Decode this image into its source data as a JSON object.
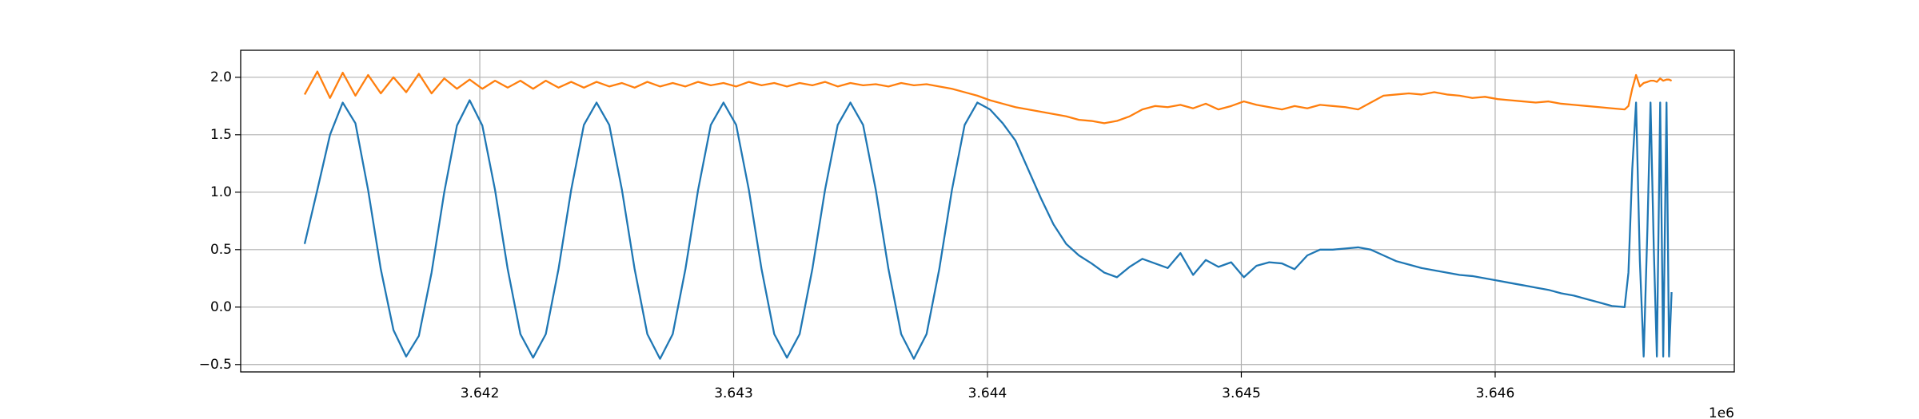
{
  "chart_data": {
    "type": "line",
    "x": [
      3641310,
      3641360,
      3641410,
      3641460,
      3641510,
      3641560,
      3641610,
      3641660,
      3641710,
      3641760,
      3641810,
      3641860,
      3641910,
      3641960,
      3642010,
      3642060,
      3642110,
      3642160,
      3642210,
      3642260,
      3642310,
      3642360,
      3642410,
      3642460,
      3642510,
      3642560,
      3642610,
      3642660,
      3642710,
      3642760,
      3642810,
      3642860,
      3642910,
      3642960,
      3643010,
      3643060,
      3643110,
      3643160,
      3643210,
      3643260,
      3643310,
      3643360,
      3643410,
      3643460,
      3643510,
      3643560,
      3643610,
      3643660,
      3643710,
      3643760,
      3643810,
      3643860,
      3643910,
      3643960,
      3644010,
      3644060,
      3644110,
      3644160,
      3644210,
      3644260,
      3644310,
      3644360,
      3644410,
      3644460,
      3644510,
      3644560,
      3644610,
      3644660,
      3644710,
      3644760,
      3644810,
      3644860,
      3644910,
      3644960,
      3645010,
      3645060,
      3645110,
      3645160,
      3645210,
      3645260,
      3645310,
      3645360,
      3645410,
      3645460,
      3645510,
      3645560,
      3645610,
      3645660,
      3645710,
      3645760,
      3645810,
      3645860,
      3645910,
      3645960,
      3646010,
      3646060,
      3646110,
      3646160,
      3646210,
      3646260,
      3646310,
      3646360,
      3646410,
      3646460,
      3646510,
      3646525,
      3646540,
      3646555,
      3646570,
      3646585,
      3646600,
      3646612,
      3646625,
      3646637,
      3646650,
      3646662,
      3646675,
      3646685,
      3646695
    ],
    "series": [
      {
        "color": "#1f77b4",
        "values": [
          0.55,
          1.02,
          1.5,
          1.78,
          1.6,
          1.02,
          0.33,
          -0.2,
          -0.43,
          -0.25,
          0.3,
          1.0,
          1.58,
          1.8,
          1.58,
          1.02,
          0.33,
          -0.235,
          -0.44,
          -0.235,
          0.33,
          1.02,
          1.585,
          1.78,
          1.585,
          1.02,
          0.33,
          -0.235,
          -0.45,
          -0.235,
          0.33,
          1.02,
          1.585,
          1.78,
          1.585,
          1.02,
          0.33,
          -0.235,
          -0.44,
          -0.235,
          0.33,
          1.02,
          1.585,
          1.78,
          1.585,
          1.02,
          0.33,
          -0.235,
          -0.45,
          -0.235,
          0.33,
          1.02,
          1.585,
          1.78,
          1.72,
          1.6,
          1.45,
          1.2,
          0.95,
          0.72,
          0.55,
          0.45,
          0.38,
          0.3,
          0.26,
          0.35,
          0.42,
          0.38,
          0.34,
          0.47,
          0.28,
          0.41,
          0.35,
          0.39,
          0.26,
          0.36,
          0.39,
          0.38,
          0.33,
          0.45,
          0.5,
          0.5,
          0.51,
          0.52,
          0.5,
          0.45,
          0.4,
          0.37,
          0.34,
          0.32,
          0.3,
          0.28,
          0.27,
          0.25,
          0.23,
          0.21,
          0.19,
          0.17,
          0.15,
          0.12,
          0.1,
          0.07,
          0.04,
          0.01,
          0,
          0.3,
          1.2,
          1.78,
          0.4,
          -0.43,
          0.7,
          1.78,
          0.5,
          -0.43,
          1.78,
          -0.43,
          1.78,
          -0.43,
          0.13
        ]
      },
      {
        "color": "#ff7f0e",
        "values": [
          1.85,
          2.05,
          1.82,
          2.04,
          1.84,
          2.02,
          1.86,
          2.0,
          1.87,
          2.03,
          1.86,
          1.99,
          1.9,
          1.98,
          1.9,
          1.97,
          1.91,
          1.97,
          1.9,
          1.97,
          1.91,
          1.96,
          1.91,
          1.96,
          1.92,
          1.95,
          1.91,
          1.96,
          1.92,
          1.95,
          1.92,
          1.96,
          1.93,
          1.95,
          1.92,
          1.96,
          1.93,
          1.95,
          1.92,
          1.95,
          1.93,
          1.96,
          1.92,
          1.95,
          1.93,
          1.94,
          1.92,
          1.95,
          1.93,
          1.94,
          1.92,
          1.9,
          1.87,
          1.84,
          1.8,
          1.77,
          1.74,
          1.72,
          1.7,
          1.68,
          1.66,
          1.63,
          1.62,
          1.6,
          1.62,
          1.66,
          1.72,
          1.75,
          1.74,
          1.76,
          1.73,
          1.77,
          1.72,
          1.75,
          1.79,
          1.76,
          1.74,
          1.72,
          1.75,
          1.73,
          1.76,
          1.75,
          1.74,
          1.72,
          1.78,
          1.84,
          1.85,
          1.86,
          1.85,
          1.87,
          1.85,
          1.84,
          1.82,
          1.83,
          1.81,
          1.8,
          1.79,
          1.78,
          1.79,
          1.77,
          1.76,
          1.75,
          1.74,
          1.73,
          1.72,
          1.75,
          1.9,
          2.02,
          1.92,
          1.95,
          1.96,
          1.97,
          1.97,
          1.96,
          1.99,
          1.97,
          1.98,
          1.98,
          1.97
        ]
      }
    ],
    "xlim": [
      3641058,
      3646942
    ],
    "ylim": [
      -0.564,
      2.235
    ],
    "xticks": [
      {
        "value": 3642000,
        "label": "3.642"
      },
      {
        "value": 3643000,
        "label": "3.643"
      },
      {
        "value": 3644000,
        "label": "3.644"
      },
      {
        "value": 3645000,
        "label": "3.645"
      },
      {
        "value": 3646000,
        "label": "3.646"
      }
    ],
    "yticks": [
      {
        "value": -0.5,
        "label": "−0.5"
      },
      {
        "value": 0,
        "label": "0.0"
      },
      0.5,
      {
        "value": 1,
        "label": "1.0"
      },
      1.5,
      {
        "value": 2,
        "label": "2.0"
      }
    ],
    "x_offset_text": "1e6",
    "grid": true
  }
}
